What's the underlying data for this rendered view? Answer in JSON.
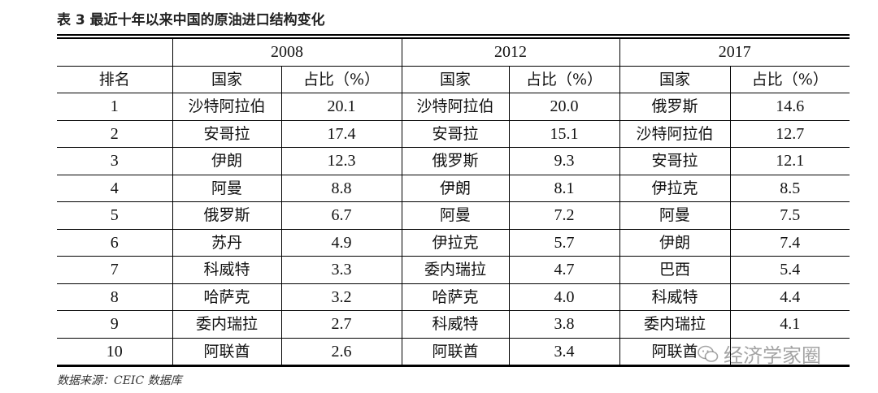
{
  "caption": "表 3 最近十年以来中国的原油进口结构变化",
  "header": {
    "years": [
      "2008",
      "2012",
      "2017"
    ],
    "rank_label": "排名",
    "country_label": "国家",
    "share_label": "占比（%）"
  },
  "rows": [
    {
      "rank": "1",
      "c2008": "沙特阿拉伯",
      "p2008": "20.1",
      "c2012": "沙特阿拉伯",
      "p2012": "20.0",
      "c2017": "俄罗斯",
      "p2017": "14.6"
    },
    {
      "rank": "2",
      "c2008": "安哥拉",
      "p2008": "17.4",
      "c2012": "安哥拉",
      "p2012": "15.1",
      "c2017": "沙特阿拉伯",
      "p2017": "12.7"
    },
    {
      "rank": "3",
      "c2008": "伊朗",
      "p2008": "12.3",
      "c2012": "俄罗斯",
      "p2012": "9.3",
      "c2017": "安哥拉",
      "p2017": "12.1"
    },
    {
      "rank": "4",
      "c2008": "阿曼",
      "p2008": "8.8",
      "c2012": "伊朗",
      "p2012": "8.1",
      "c2017": "伊拉克",
      "p2017": "8.5"
    },
    {
      "rank": "5",
      "c2008": "俄罗斯",
      "p2008": "6.7",
      "c2012": "阿曼",
      "p2012": "7.2",
      "c2017": "阿曼",
      "p2017": "7.5"
    },
    {
      "rank": "6",
      "c2008": "苏丹",
      "p2008": "4.9",
      "c2012": "伊拉克",
      "p2012": "5.7",
      "c2017": "伊朗",
      "p2017": "7.4"
    },
    {
      "rank": "7",
      "c2008": "科威特",
      "p2008": "3.3",
      "c2012": "委内瑞拉",
      "p2012": "4.7",
      "c2017": "巴西",
      "p2017": "5.4"
    },
    {
      "rank": "8",
      "c2008": "哈萨克",
      "p2008": "3.2",
      "c2012": "哈萨克",
      "p2012": "4.0",
      "c2017": "科威特",
      "p2017": "4.4"
    },
    {
      "rank": "9",
      "c2008": "委内瑞拉",
      "p2008": "2.7",
      "c2012": "科威特",
      "p2012": "3.8",
      "c2017": "委内瑞拉",
      "p2017": "4.1"
    },
    {
      "rank": "10",
      "c2008": "阿联酋",
      "p2008": "2.6",
      "c2012": "阿联酋",
      "p2012": "3.4",
      "c2017": "阿联酋",
      "p2017": ""
    }
  ],
  "source": "数据来源：CEIC 数据库",
  "watermark": {
    "text": "经济学家圈",
    "icon": "wechat-icon"
  }
}
